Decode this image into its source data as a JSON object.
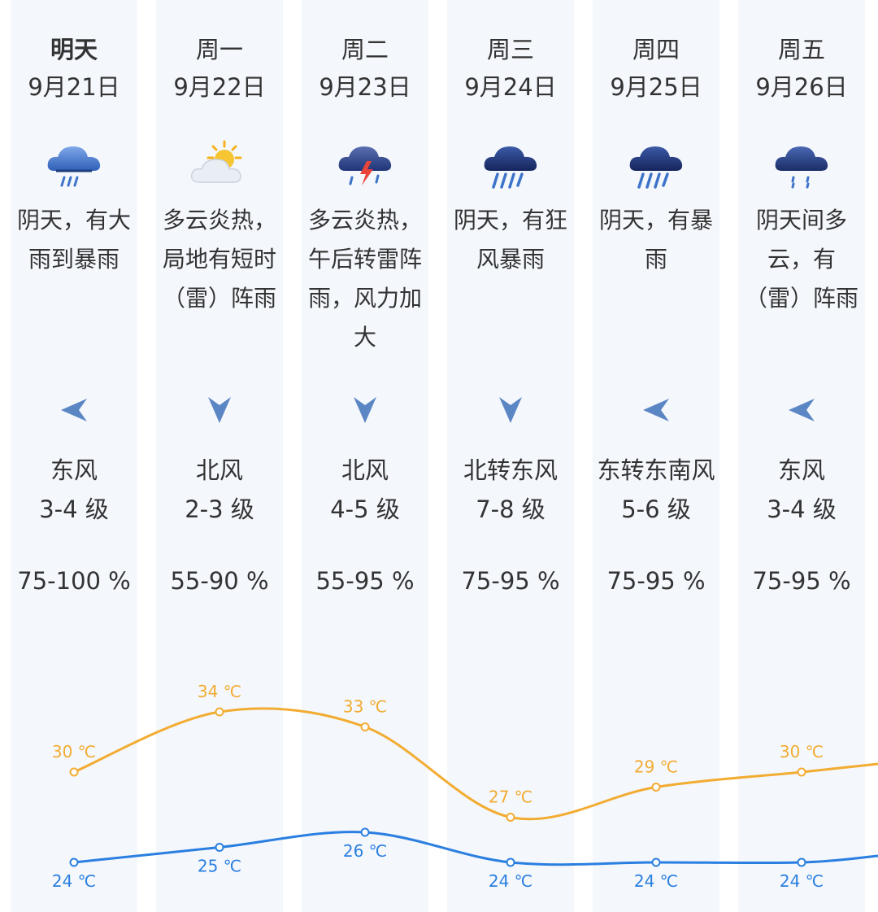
{
  "days": [
    {
      "day": "明天",
      "date": "9月21日",
      "icon": "heavy-rain-cloud-icon",
      "condition": "阴天，有大雨到暴雨",
      "wind_dir": "东风",
      "wind_level": "3-4 级",
      "humidity": "75-100 %",
      "arrow": "left"
    },
    {
      "day": "周一",
      "date": "9月22日",
      "icon": "sun-behind-cloud-icon",
      "condition": "多云炎热，局地有短时（雷）阵雨",
      "wind_dir": "北风",
      "wind_level": "2-3 级",
      "humidity": "55-90 %",
      "arrow": "down"
    },
    {
      "day": "周二",
      "date": "9月23日",
      "icon": "thunderstorm-cloud-icon",
      "condition": "多云炎热，午后转雷阵雨，风力加大",
      "wind_dir": "北风",
      "wind_level": "4-5 级",
      "humidity": "55-95 %",
      "arrow": "down"
    },
    {
      "day": "周三",
      "date": "9月24日",
      "icon": "rainstorm-cloud-icon",
      "condition": "阴天，有狂风暴雨",
      "wind_dir": "北转东风",
      "wind_level": "7-8 级",
      "humidity": "75-95 %",
      "arrow": "down"
    },
    {
      "day": "周四",
      "date": "9月25日",
      "icon": "rainstorm-cloud-icon",
      "condition": "阴天，有暴雨",
      "wind_dir": "东转东南风",
      "wind_level": "5-6 级",
      "humidity": "75-95 %",
      "arrow": "left"
    },
    {
      "day": "周五",
      "date": "9月26日",
      "icon": "light-rain-cloud-icon",
      "condition": "阴天间多云，有（雷）阵雨",
      "wind_dir": "东风",
      "wind_level": "3-4 级",
      "humidity": "75-95 %",
      "arrow": "left"
    }
  ],
  "colors": {
    "high": "#f2ac32",
    "low": "#2a7fe0",
    "arrow": "#5b86c4",
    "column": "#f4f7fc"
  },
  "chart_data": {
    "type": "line",
    "categories": [
      "9月21日",
      "9月22日",
      "9月23日",
      "9月24日",
      "9月25日",
      "9月26日"
    ],
    "unit": "℃",
    "series": [
      {
        "values": [
          30,
          34,
          33,
          27,
          29,
          30
        ],
        "labels": [
          "30 ℃",
          "34 ℃",
          "33 ℃",
          "27 ℃",
          "29 ℃",
          "30 ℃"
        ],
        "color": "#f2ac32"
      },
      {
        "values": [
          24,
          25,
          26,
          24,
          24,
          24
        ],
        "labels": [
          "24 ℃",
          "25 ℃",
          "26 ℃",
          "24 ℃",
          "24 ℃",
          "24 ℃"
        ],
        "color": "#2a7fe0"
      }
    ],
    "grid": false,
    "legend": "none"
  }
}
